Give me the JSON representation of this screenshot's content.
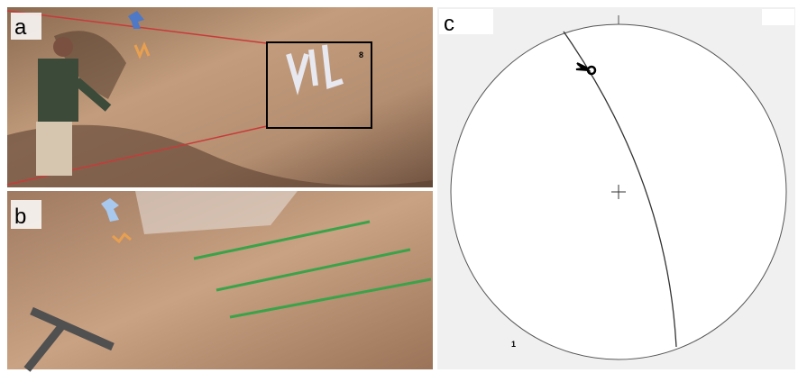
{
  "panels": [
    {
      "label": "a",
      "inset_label": "8"
    },
    {
      "label": "b"
    },
    {
      "label": "c",
      "note": "1"
    }
  ]
}
